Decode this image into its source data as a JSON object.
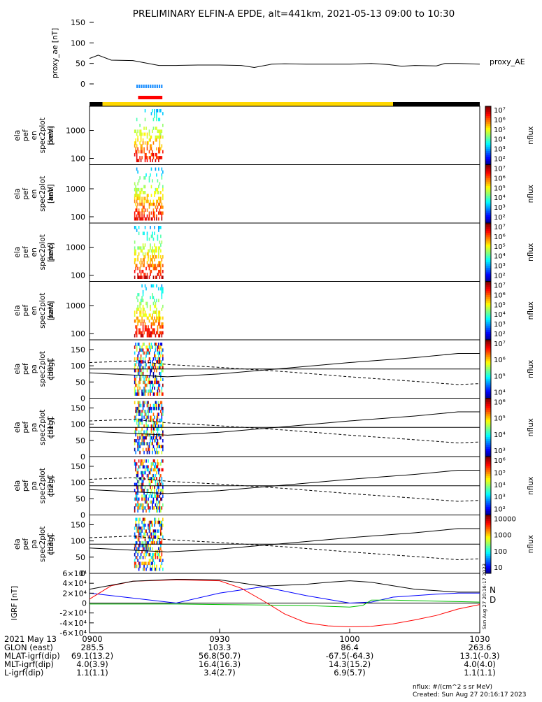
{
  "title": "PRELIMINARY ELFIN-A EPDE, alt=441km, 2021-05-13 09:00 to 10:30",
  "chart_data": [
    {
      "type": "line",
      "panel": "proxy_ae",
      "ylabel": "proxy_ae [nT]",
      "legend": "proxy_AE",
      "ylim": [
        0,
        150
      ],
      "yticks": [
        "0",
        "50",
        "100",
        "150"
      ],
      "x_minutes": [
        0,
        2,
        5,
        10,
        16,
        20,
        25,
        30,
        35,
        38,
        42,
        45,
        50,
        55,
        60,
        65,
        69,
        72,
        75,
        80,
        82,
        85,
        90
      ],
      "values": [
        62,
        70,
        58,
        57,
        45,
        45,
        46,
        46,
        45,
        40,
        48,
        49,
        48,
        48,
        48,
        50,
        47,
        43,
        45,
        44,
        50,
        50,
        48
      ]
    },
    {
      "type": "heatmap",
      "panel": "ela_pef_en_spec2plot_omni",
      "ylabel": "ela pef en spec2plot omni [keV]",
      "colorbar_label": "nflux",
      "yscale": "log",
      "yticks": [
        "100",
        "1000"
      ],
      "colorbar_ticks": [
        "10²",
        "10³",
        "10⁴",
        "10⁵",
        "10⁶",
        "10⁷"
      ]
    },
    {
      "type": "heatmap",
      "panel": "ela_pef_en_spec2plot_anti",
      "ylabel": "ela pef en spec2plot anti [keV]",
      "colorbar_label": "nflux",
      "yscale": "log",
      "yticks": [
        "100",
        "1000"
      ],
      "colorbar_ticks": [
        "10²",
        "10³",
        "10⁴",
        "10⁵",
        "10⁶",
        "10⁷"
      ]
    },
    {
      "type": "heatmap",
      "panel": "ela_pef_en_spec2plot_perp",
      "ylabel": "ela pef en spec2plot perp [keV]",
      "colorbar_label": "nflux",
      "yscale": "log",
      "yticks": [
        "100",
        "1000"
      ],
      "colorbar_ticks": [
        "10²",
        "10³",
        "10⁴",
        "10⁵",
        "10⁶",
        "10⁷"
      ]
    },
    {
      "type": "heatmap",
      "panel": "ela_pef_en_spec2plot_para",
      "ylabel": "ela pef en spec2plot para [keV]",
      "colorbar_label": "nflux",
      "yscale": "log",
      "yticks": [
        "100",
        "1000"
      ],
      "colorbar_ticks": [
        "10²",
        "10³",
        "10⁴",
        "10⁵",
        "10⁶",
        "10⁷"
      ]
    },
    {
      "type": "heatmap",
      "panel": "ela_pef_pa_spec2plot_ch0LC",
      "ylabel": "ela pef pa spec2plot ch0LC [deg]",
      "colorbar_label": "nflux",
      "ylim": [
        0,
        180
      ],
      "yticks": [
        "0",
        "50",
        "100",
        "150"
      ],
      "colorbar_ticks": [
        "10⁴",
        "10⁵",
        "10⁶",
        "10⁷"
      ]
    },
    {
      "type": "heatmap",
      "panel": "ela_pef_pa_spec2plot_ch1LC",
      "ylabel": "ela pef pa spec2plot ch1LC [deg]",
      "colorbar_label": "nflux",
      "ylim": [
        0,
        180
      ],
      "yticks": [
        "0",
        "50",
        "100",
        "150"
      ],
      "colorbar_ticks": [
        "10³",
        "10⁴",
        "10⁵",
        "10⁶"
      ]
    },
    {
      "type": "heatmap",
      "panel": "ela_pef_pa_spec2plot_ch2LC",
      "ylabel": "ela pef pa spec2plot ch2LC [deg]",
      "colorbar_label": "nflux",
      "ylim": [
        0,
        180
      ],
      "yticks": [
        "0",
        "50",
        "100",
        "150"
      ],
      "colorbar_ticks": [
        "10²",
        "10³",
        "10⁴",
        "10⁵",
        "10⁶"
      ]
    },
    {
      "type": "heatmap",
      "panel": "ela_pef_pa_spec2plot_ch3LC",
      "ylabel": "ela pef pa spec2plot ch3LC [deg]",
      "colorbar_label": "nflux",
      "ylim": [
        0,
        180
      ],
      "yticks": [
        "0",
        "50",
        "100",
        "150"
      ],
      "colorbar_ticks": [
        "10",
        "100",
        "1000",
        "10000"
      ]
    },
    {
      "type": "line",
      "panel": "IGRF",
      "ylabel": "IGRF [nT]",
      "ylim": [
        -60000,
        60000
      ],
      "yticks": [
        "-6×10⁴",
        "-4×10⁴",
        "-2×10⁴",
        "0",
        "2×10⁴",
        "4×10⁴",
        "6×10⁴"
      ],
      "legend": [
        "N",
        "D"
      ],
      "series": [
        {
          "name": "N",
          "color": "#0000ff",
          "x_minutes": [
            0,
            10,
            20,
            30,
            40,
            50,
            60,
            65,
            70,
            75,
            80,
            85,
            90
          ],
          "values": [
            20000,
            10000,
            0,
            20000,
            33000,
            15000,
            0,
            2000,
            12000,
            15000,
            18000,
            20000,
            20000
          ]
        },
        {
          "name": "D",
          "color": "#ff0000",
          "x_minutes": [
            0,
            5,
            10,
            20,
            30,
            35,
            40,
            45,
            50,
            55,
            60,
            65,
            70,
            75,
            80,
            85,
            90
          ],
          "values": [
            8000,
            35000,
            44000,
            47000,
            45000,
            30000,
            5000,
            -22000,
            -40000,
            -46000,
            -48000,
            -47000,
            -42000,
            -34000,
            -25000,
            -12000,
            -3000
          ]
        },
        {
          "color": "#000000",
          "x_minutes": [
            0,
            10,
            20,
            30,
            40,
            50,
            55,
            60,
            65,
            70,
            75,
            80,
            85,
            90
          ],
          "values": [
            28000,
            44000,
            48000,
            47000,
            34000,
            38000,
            42000,
            45000,
            42000,
            35000,
            28000,
            25000,
            22000,
            22000
          ]
        },
        {
          "color": "#00c000",
          "x_minutes": [
            0,
            10,
            20,
            30,
            40,
            50,
            60,
            63,
            65,
            70,
            75,
            80,
            85,
            90
          ],
          "values": [
            -2000,
            -2000,
            -2000,
            -3000,
            -4000,
            -5000,
            -8000,
            -5000,
            6000,
            6000,
            5000,
            4000,
            3000,
            2000
          ]
        }
      ]
    }
  ],
  "ephemeris": {
    "rows": [
      {
        "label": "2021 May 13",
        "values": [
          "0900",
          "0930",
          "1000",
          "1030"
        ]
      },
      {
        "label": "GLON (east)",
        "values": [
          "285.5",
          "103.3",
          "86.4",
          "263.6"
        ]
      },
      {
        "label": "MLAT-igrf(dip)",
        "values": [
          "69.1(13.2)",
          "56.8(50.7)",
          "-67.5(-64.3)",
          "13.1(-0.3)"
        ]
      },
      {
        "label": "MLT-igrf(dip)",
        "values": [
          "4.0(3.9)",
          "16.4(16.3)",
          "14.3(15.2)",
          "4.0(4.0)"
        ]
      },
      {
        "label": "L-igrf(dip)",
        "values": [
          "1.1(1.1)",
          "3.4(2.7)",
          "6.9(5.7)",
          "1.1(1.1)"
        ]
      }
    ]
  },
  "footer": {
    "units": "nflux: #/(cm^2 s sr MeV)",
    "created": "Created: Sun Aug 27 20:16:17 2023",
    "side_stamp": "Sun Aug 27 20:16:17 2023"
  }
}
